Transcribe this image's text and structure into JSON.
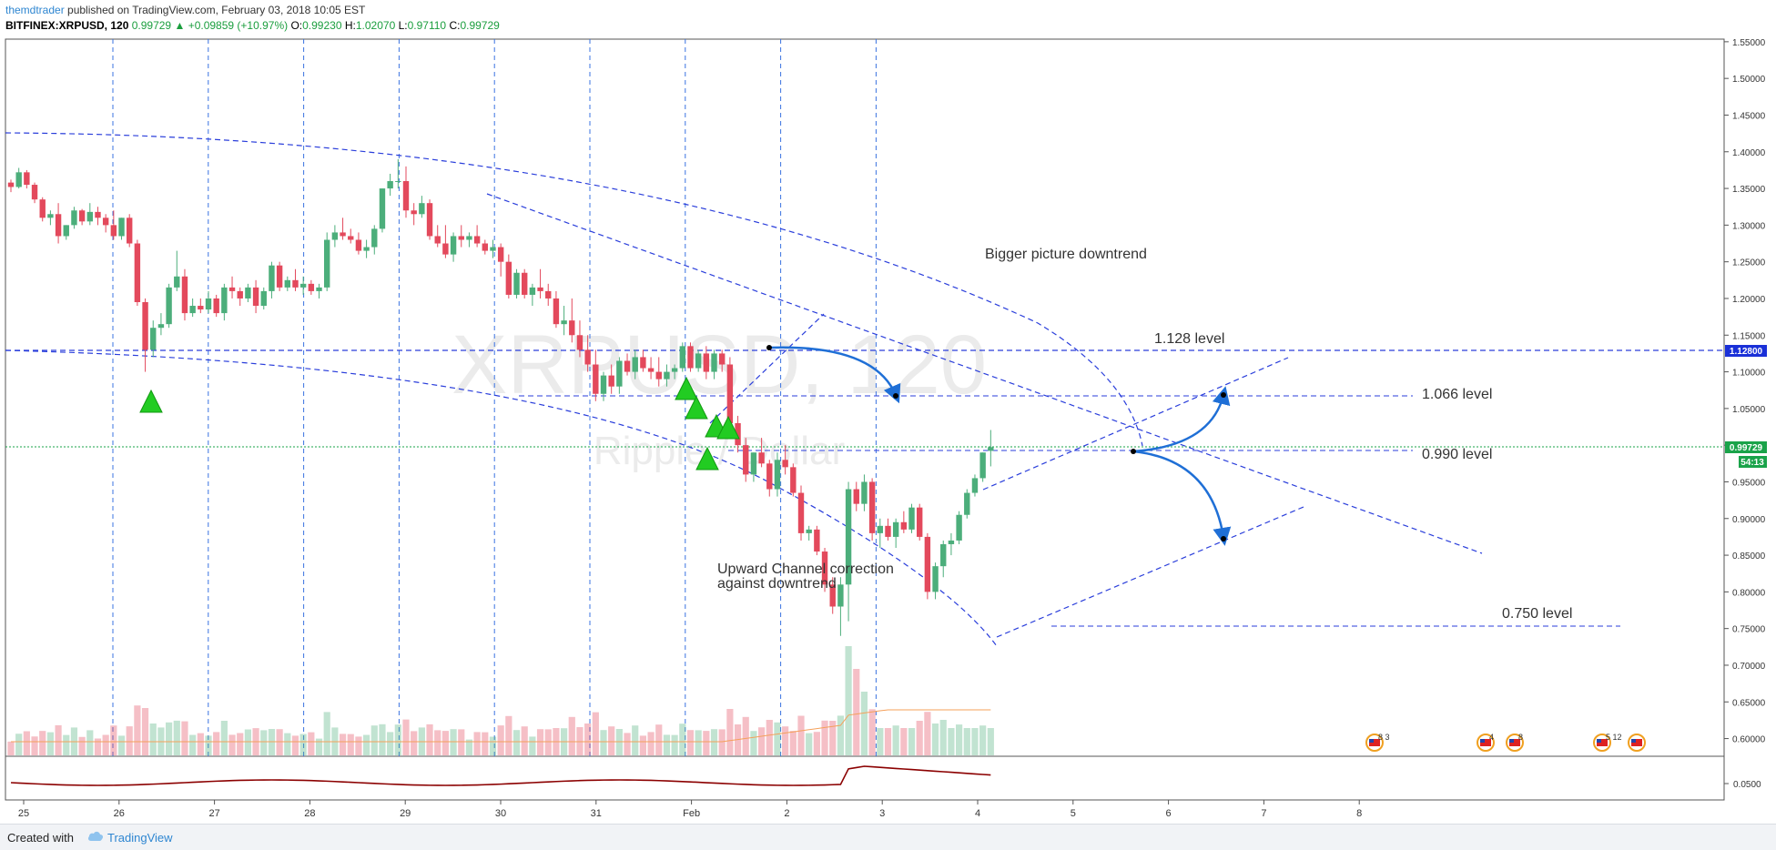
{
  "header": {
    "user": "themdtrader",
    "published_text": " published on TradingView.com, February 03, 2018 10:05 EST",
    "symbol": "BITFINEX:XRPUSD, 120",
    "last": "0.99729",
    "change": "+0.09859 (+10.97%)",
    "o_label": "O:",
    "o_val": "0.99230",
    "h_label": "H:",
    "h_val": "1.02070",
    "l_label": "L:",
    "l_val": "0.97110",
    "c_label": "C:",
    "c_val": "0.99729"
  },
  "watermark": {
    "symbol": "XRPUSD, 120",
    "name": "Ripple / Dollar"
  },
  "annotations": {
    "bigger_picture": "Bigger picture downtrend",
    "channel_line1": "Upward Channel correction",
    "channel_line2": "against downtrend",
    "level_1128": "1.128 level",
    "level_1066": "1.066 level",
    "level_0990": "0.990 level",
    "level_0750": "0.750 level"
  },
  "price_axis": {
    "ticks": [
      "1.55000",
      "1.50000",
      "1.45000",
      "1.40000",
      "1.35000",
      "1.30000",
      "1.25000",
      "1.20000",
      "1.15000",
      "1.10000",
      "1.05000",
      "1.00000",
      "0.95000",
      "0.90000",
      "0.85000",
      "0.80000",
      "0.75000",
      "0.70000",
      "0.65000",
      "0.60000"
    ],
    "badge_level": "1.12800",
    "badge_last": "0.99729",
    "badge_countdown": "54:13",
    "indicator_tick": "0.0500"
  },
  "time_axis": {
    "ticks": [
      "25",
      "26",
      "27",
      "28",
      "29",
      "30",
      "31",
      "Feb",
      "2",
      "3",
      "4",
      "5",
      "6",
      "7",
      "8"
    ]
  },
  "events": [
    {
      "id": "ev1",
      "count": "8 3"
    },
    {
      "id": "ev2",
      "count": "4"
    },
    {
      "id": "ev3",
      "count": "8"
    },
    {
      "id": "ev4",
      "count": "5 12"
    },
    {
      "id": "ev5",
      "count": ""
    }
  ],
  "footer": {
    "created": "Created with",
    "brand": "TradingView"
  },
  "colors": {
    "up": "#4cae7b",
    "down": "#e3495c",
    "trend": "#2a3edb",
    "arrow": "#1f6fd6",
    "marker": "#22cc22",
    "volume_ma": "#f5a05a",
    "indicator": "#8b0000"
  },
  "chart_data": {
    "type": "candlestick",
    "timeframe": "120",
    "y_range": [
      0.55,
      1.555
    ],
    "x_labels": [
      "25",
      "26",
      "27",
      "28",
      "29",
      "30",
      "31",
      "Feb",
      "2",
      "3",
      "4",
      "5",
      "6",
      "7",
      "8"
    ],
    "candles": [
      [
        1.358,
        1.362,
        1.345,
        1.352
      ],
      [
        1.352,
        1.378,
        1.35,
        1.372
      ],
      [
        1.372,
        1.375,
        1.35,
        1.355
      ],
      [
        1.355,
        1.358,
        1.33,
        1.335
      ],
      [
        1.335,
        1.338,
        1.305,
        1.31
      ],
      [
        1.31,
        1.32,
        1.3,
        1.315
      ],
      [
        1.315,
        1.33,
        1.275,
        1.285
      ],
      [
        1.285,
        1.3,
        1.28,
        1.3
      ],
      [
        1.3,
        1.325,
        1.295,
        1.32
      ],
      [
        1.32,
        1.322,
        1.3,
        1.305
      ],
      [
        1.305,
        1.33,
        1.3,
        1.318
      ],
      [
        1.318,
        1.325,
        1.3,
        1.31
      ],
      [
        1.31,
        1.315,
        1.29,
        1.3
      ],
      [
        1.3,
        1.32,
        1.28,
        1.285
      ],
      [
        1.285,
        1.31,
        1.28,
        1.31
      ],
      [
        1.31,
        1.315,
        1.27,
        1.275
      ],
      [
        1.275,
        1.28,
        1.19,
        1.195
      ],
      [
        1.195,
        1.2,
        1.1,
        1.13
      ],
      [
        1.13,
        1.17,
        1.12,
        1.16
      ],
      [
        1.16,
        1.18,
        1.15,
        1.165
      ],
      [
        1.165,
        1.22,
        1.16,
        1.215
      ],
      [
        1.215,
        1.265,
        1.21,
        1.23
      ],
      [
        1.23,
        1.24,
        1.17,
        1.18
      ],
      [
        1.18,
        1.2,
        1.175,
        1.19
      ],
      [
        1.19,
        1.2,
        1.18,
        1.185
      ],
      [
        1.185,
        1.21,
        1.18,
        1.2
      ],
      [
        1.2,
        1.205,
        1.175,
        1.18
      ],
      [
        1.18,
        1.22,
        1.17,
        1.215
      ],
      [
        1.215,
        1.23,
        1.2,
        1.21
      ],
      [
        1.21,
        1.215,
        1.19,
        1.2
      ],
      [
        1.2,
        1.22,
        1.195,
        1.215
      ],
      [
        1.215,
        1.225,
        1.18,
        1.19
      ],
      [
        1.19,
        1.215,
        1.185,
        1.21
      ],
      [
        1.21,
        1.25,
        1.2,
        1.245
      ],
      [
        1.245,
        1.25,
        1.21,
        1.215
      ],
      [
        1.215,
        1.23,
        1.21,
        1.225
      ],
      [
        1.225,
        1.24,
        1.21,
        1.215
      ],
      [
        1.215,
        1.23,
        1.205,
        1.22
      ],
      [
        1.22,
        1.225,
        1.205,
        1.21
      ],
      [
        1.21,
        1.22,
        1.2,
        1.215
      ],
      [
        1.215,
        1.29,
        1.21,
        1.28
      ],
      [
        1.28,
        1.3,
        1.27,
        1.29
      ],
      [
        1.29,
        1.31,
        1.28,
        1.285
      ],
      [
        1.285,
        1.295,
        1.275,
        1.28
      ],
      [
        1.28,
        1.29,
        1.26,
        1.265
      ],
      [
        1.265,
        1.28,
        1.255,
        1.27
      ],
      [
        1.27,
        1.3,
        1.26,
        1.295
      ],
      [
        1.295,
        1.35,
        1.29,
        1.35
      ],
      [
        1.35,
        1.37,
        1.34,
        1.36
      ],
      [
        1.36,
        1.39,
        1.35,
        1.36
      ],
      [
        1.36,
        1.38,
        1.31,
        1.32
      ],
      [
        1.32,
        1.33,
        1.3,
        1.315
      ],
      [
        1.315,
        1.34,
        1.31,
        1.33
      ],
      [
        1.33,
        1.335,
        1.28,
        1.285
      ],
      [
        1.285,
        1.3,
        1.27,
        1.275
      ],
      [
        1.275,
        1.3,
        1.255,
        1.26
      ],
      [
        1.26,
        1.29,
        1.25,
        1.285
      ],
      [
        1.285,
        1.3,
        1.27,
        1.28
      ],
      [
        1.28,
        1.29,
        1.27,
        1.285
      ],
      [
        1.285,
        1.3,
        1.27,
        1.275
      ],
      [
        1.275,
        1.28,
        1.26,
        1.265
      ],
      [
        1.265,
        1.28,
        1.255,
        1.27
      ],
      [
        1.27,
        1.275,
        1.23,
        1.25
      ],
      [
        1.25,
        1.26,
        1.2,
        1.205
      ],
      [
        1.205,
        1.24,
        1.2,
        1.235
      ],
      [
        1.235,
        1.24,
        1.2,
        1.205
      ],
      [
        1.205,
        1.22,
        1.19,
        1.215
      ],
      [
        1.215,
        1.24,
        1.2,
        1.21
      ],
      [
        1.21,
        1.22,
        1.19,
        1.2
      ],
      [
        1.2,
        1.21,
        1.16,
        1.165
      ],
      [
        1.165,
        1.19,
        1.15,
        1.17
      ],
      [
        1.17,
        1.2,
        1.14,
        1.15
      ],
      [
        1.15,
        1.17,
        1.12,
        1.13
      ],
      [
        1.13,
        1.15,
        1.1,
        1.11
      ],
      [
        1.11,
        1.13,
        1.06,
        1.07
      ],
      [
        1.07,
        1.1,
        1.06,
        1.095
      ],
      [
        1.095,
        1.11,
        1.07,
        1.08
      ],
      [
        1.08,
        1.12,
        1.07,
        1.115
      ],
      [
        1.115,
        1.125,
        1.095,
        1.1
      ],
      [
        1.1,
        1.13,
        1.09,
        1.12
      ],
      [
        1.12,
        1.13,
        1.1,
        1.105
      ],
      [
        1.105,
        1.12,
        1.09,
        1.1
      ],
      [
        1.1,
        1.12,
        1.08,
        1.09
      ],
      [
        1.09,
        1.11,
        1.08,
        1.1
      ],
      [
        1.1,
        1.11,
        1.09,
        1.105
      ],
      [
        1.105,
        1.14,
        1.1,
        1.135
      ],
      [
        1.135,
        1.14,
        1.1,
        1.105
      ],
      [
        1.105,
        1.13,
        1.1,
        1.125
      ],
      [
        1.125,
        1.135,
        1.09,
        1.1
      ],
      [
        1.1,
        1.13,
        1.09,
        1.125
      ],
      [
        1.125,
        1.13,
        1.1,
        1.11
      ],
      [
        1.11,
        1.12,
        1.02,
        1.03
      ],
      [
        1.03,
        1.04,
        0.99,
        1.0
      ],
      [
        1.0,
        1.01,
        0.95,
        0.96
      ],
      [
        0.96,
        0.99,
        0.95,
        0.99
      ],
      [
        0.99,
        1.01,
        0.97,
        0.975
      ],
      [
        0.975,
        0.98,
        0.93,
        0.94
      ],
      [
        0.94,
        0.99,
        0.93,
        0.98
      ],
      [
        0.98,
        1.0,
        0.96,
        0.97
      ],
      [
        0.97,
        0.975,
        0.93,
        0.935
      ],
      [
        0.935,
        0.945,
        0.87,
        0.88
      ],
      [
        0.88,
        0.89,
        0.87,
        0.885
      ],
      [
        0.885,
        0.89,
        0.85,
        0.855
      ],
      [
        0.855,
        0.86,
        0.8,
        0.81
      ],
      [
        0.81,
        0.82,
        0.77,
        0.78
      ],
      [
        0.78,
        0.82,
        0.74,
        0.81
      ],
      [
        0.81,
        0.95,
        0.76,
        0.94
      ],
      [
        0.94,
        0.95,
        0.91,
        0.92
      ],
      [
        0.92,
        0.96,
        0.91,
        0.95
      ],
      [
        0.95,
        0.955,
        0.87,
        0.88
      ],
      [
        0.88,
        0.9,
        0.86,
        0.89
      ],
      [
        0.89,
        0.9,
        0.87,
        0.875
      ],
      [
        0.875,
        0.9,
        0.86,
        0.895
      ],
      [
        0.895,
        0.91,
        0.88,
        0.885
      ],
      [
        0.885,
        0.92,
        0.88,
        0.915
      ],
      [
        0.915,
        0.92,
        0.87,
        0.875
      ],
      [
        0.875,
        0.88,
        0.79,
        0.8
      ],
      [
        0.8,
        0.84,
        0.79,
        0.835
      ],
      [
        0.835,
        0.87,
        0.82,
        0.865
      ],
      [
        0.865,
        0.88,
        0.85,
        0.87
      ],
      [
        0.87,
        0.91,
        0.865,
        0.905
      ],
      [
        0.905,
        0.94,
        0.9,
        0.935
      ],
      [
        0.935,
        0.96,
        0.93,
        0.955
      ],
      [
        0.955,
        0.99,
        0.95,
        0.99
      ],
      [
        0.9923,
        1.0207,
        0.9711,
        0.99729
      ]
    ],
    "horizontal_levels": [
      1.128,
      1.066,
      0.99,
      0.75
    ],
    "last_price": 0.99729,
    "grid": true
  }
}
